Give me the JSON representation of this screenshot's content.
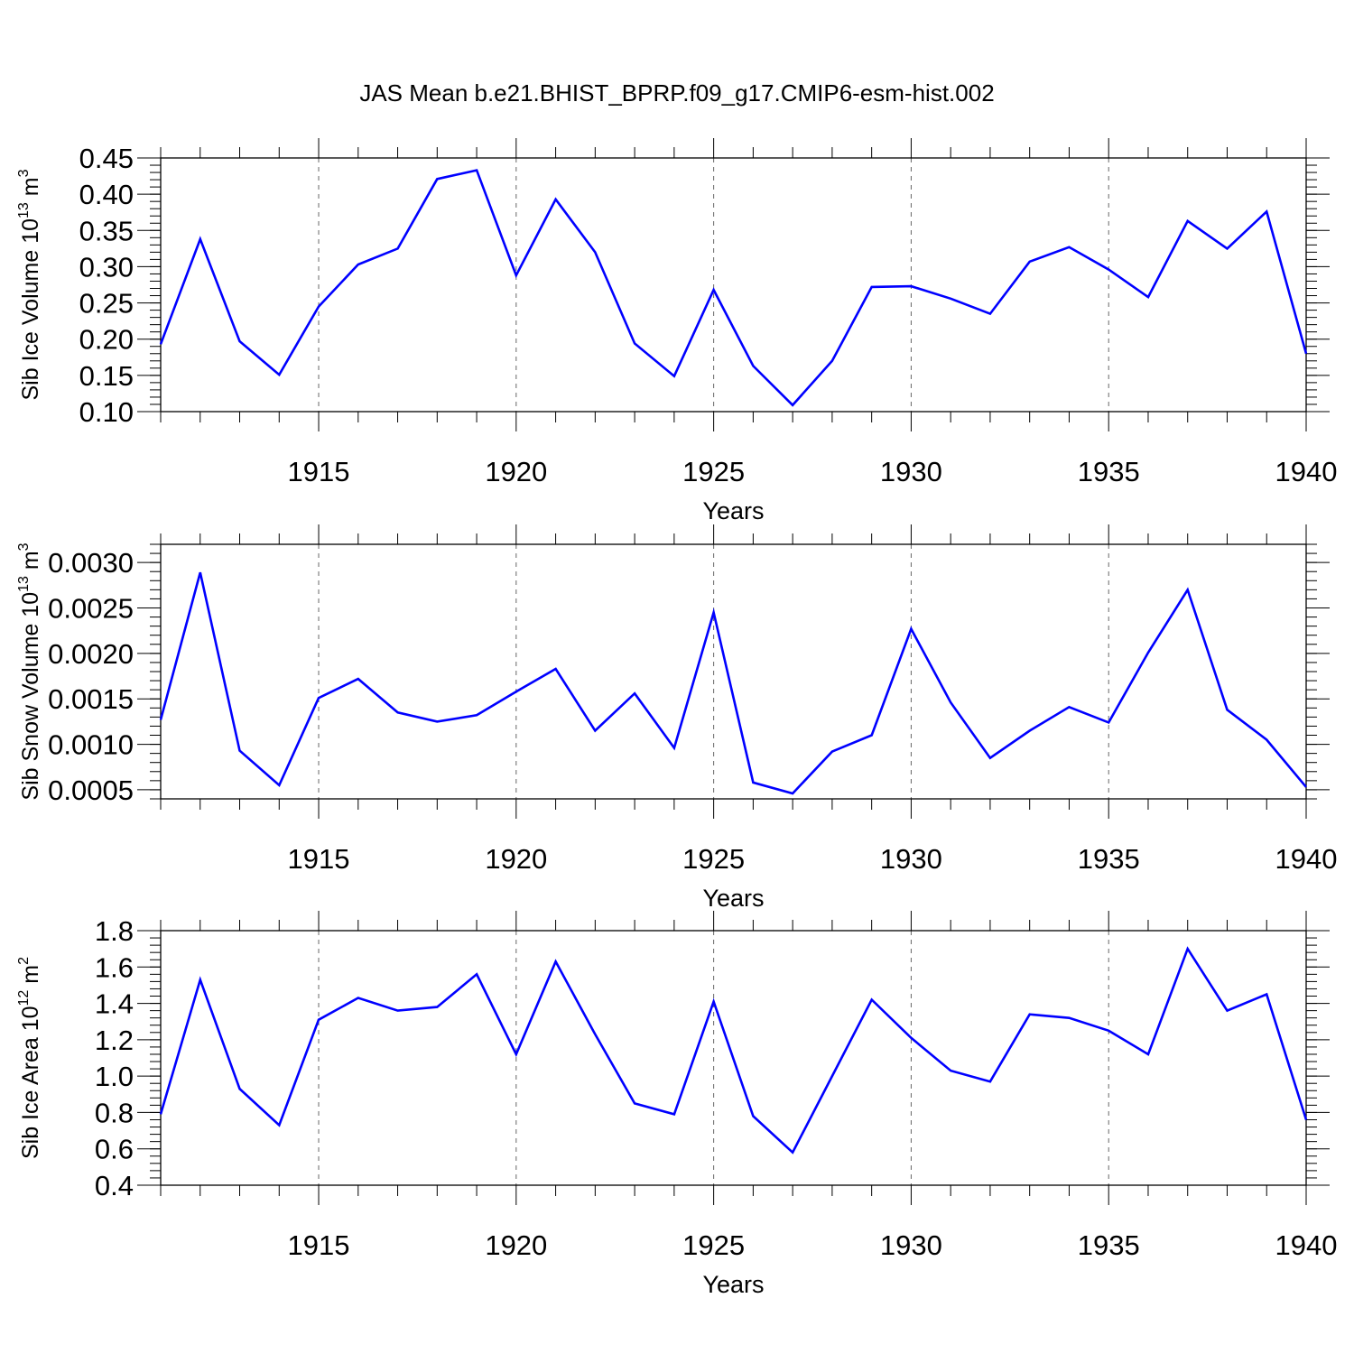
{
  "figure_title": "JAS Mean b.e21.BHIST_BPRP.f09_g17.CMIP6-esm-hist.002",
  "line_color": "#0000ff",
  "chart_data": [
    {
      "type": "line",
      "title": "JAS Mean b.e21.BHIST_BPRP.f09_g17.CMIP6-esm-hist.002",
      "ylabel": "Sib Ice Volume 10",
      "ylabel_sup": "13",
      "ylabel_unit": " m",
      "ylabel_unit_sup": "3",
      "xlabel": "Years",
      "xlim": [
        1911,
        1940
      ],
      "ylim": [
        0.1,
        0.45
      ],
      "yticks": [
        "0.10",
        "0.15",
        "0.20",
        "0.25",
        "0.30",
        "0.35",
        "0.40",
        "0.45"
      ],
      "xticks": [
        "1915",
        "1920",
        "1925",
        "1930",
        "1935",
        "1940"
      ],
      "x": [
        1911,
        1912,
        1913,
        1914,
        1915,
        1916,
        1917,
        1918,
        1919,
        1920,
        1921,
        1922,
        1923,
        1924,
        1925,
        1926,
        1927,
        1928,
        1929,
        1930,
        1931,
        1932,
        1933,
        1934,
        1935,
        1936,
        1937,
        1938,
        1939,
        1940
      ],
      "values": [
        0.193,
        0.338,
        0.197,
        0.151,
        0.245,
        0.303,
        0.325,
        0.421,
        0.433,
        0.288,
        0.393,
        0.32,
        0.194,
        0.149,
        0.268,
        0.163,
        0.109,
        0.17,
        0.272,
        0.273,
        0.256,
        0.235,
        0.307,
        0.327,
        0.296,
        0.258,
        0.363,
        0.325,
        0.376,
        0.18
      ]
    },
    {
      "type": "line",
      "ylabel": "Sib Snow Volume 10",
      "ylabel_sup": "13",
      "ylabel_unit": " m",
      "ylabel_unit_sup": "3",
      "xlabel": "Years",
      "xlim": [
        1911,
        1940
      ],
      "ylim": [
        0.0004,
        0.0032
      ],
      "yticks": [
        "0.0005",
        "0.0010",
        "0.0015",
        "0.0020",
        "0.0025",
        "0.0030"
      ],
      "xticks": [
        "1915",
        "1920",
        "1925",
        "1930",
        "1935",
        "1940"
      ],
      "x": [
        1911,
        1912,
        1913,
        1914,
        1915,
        1916,
        1917,
        1918,
        1919,
        1920,
        1921,
        1922,
        1923,
        1924,
        1925,
        1926,
        1927,
        1928,
        1929,
        1930,
        1931,
        1932,
        1933,
        1934,
        1935,
        1936,
        1937,
        1938,
        1939,
        1940
      ],
      "values": [
        0.00127,
        0.00289,
        0.00093,
        0.00055,
        0.00151,
        0.00172,
        0.00135,
        0.00125,
        0.00132,
        0.00158,
        0.00183,
        0.00115,
        0.00156,
        0.00096,
        0.00245,
        0.00058,
        0.00046,
        0.00092,
        0.0011,
        0.00227,
        0.00146,
        0.00085,
        0.00115,
        0.00141,
        0.00124,
        0.00201,
        0.0027,
        0.00138,
        0.00105,
        0.00053
      ]
    },
    {
      "type": "line",
      "ylabel": "Sib Ice Area 10",
      "ylabel_sup": "12",
      "ylabel_unit": " m",
      "ylabel_unit_sup": "2",
      "xlabel": "Years",
      "xlim": [
        1911,
        1940
      ],
      "ylim": [
        0.4,
        1.8
      ],
      "yticks": [
        "0.4",
        "0.6",
        "0.8",
        "1.0",
        "1.2",
        "1.4",
        "1.6",
        "1.8"
      ],
      "xticks": [
        "1915",
        "1920",
        "1925",
        "1930",
        "1935",
        "1940"
      ],
      "x": [
        1911,
        1912,
        1913,
        1914,
        1915,
        1916,
        1917,
        1918,
        1919,
        1920,
        1921,
        1922,
        1923,
        1924,
        1925,
        1926,
        1927,
        1928,
        1929,
        1930,
        1931,
        1932,
        1933,
        1934,
        1935,
        1936,
        1937,
        1938,
        1939,
        1940
      ],
      "values": [
        0.79,
        1.53,
        0.93,
        0.73,
        1.31,
        1.43,
        1.36,
        1.38,
        1.56,
        1.12,
        1.63,
        1.23,
        0.85,
        0.79,
        1.41,
        0.78,
        0.58,
        1.0,
        1.42,
        1.21,
        1.03,
        0.97,
        1.34,
        1.32,
        1.25,
        1.12,
        1.7,
        1.36,
        1.45,
        0.76
      ]
    }
  ]
}
